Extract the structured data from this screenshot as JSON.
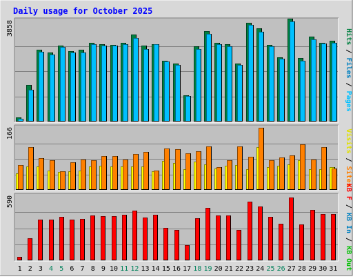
{
  "chart_data": {
    "type": "bar",
    "title": "Daily usage for October 2025",
    "categories": [
      "1",
      "2",
      "3",
      "4",
      "5",
      "6",
      "7",
      "8",
      "9",
      "10",
      "11",
      "12",
      "13",
      "14",
      "15",
      "16",
      "17",
      "18",
      "19",
      "20",
      "21",
      "22",
      "23",
      "24",
      "25",
      "26",
      "27",
      "28",
      "29",
      "30",
      "31"
    ],
    "weekend_categories": [
      "4",
      "5",
      "11",
      "12",
      "18",
      "19",
      "25",
      "26"
    ],
    "panels": [
      {
        "name": "hits",
        "ymax_label": "3858",
        "ymax": 3858,
        "right_label_parts": [
          {
            "text": "Hits",
            "color": "#008040"
          },
          {
            "text": " / ",
            "color": "#000000"
          },
          {
            "text": "Files",
            "color": "#0080c0"
          },
          {
            "text": " / ",
            "color": "#000000"
          },
          {
            "text": "Pages",
            "color": "#00c0ff"
          }
        ],
        "series": [
          {
            "name": "Hits",
            "color": "#008040",
            "values": [
              160,
              1400,
              2750,
              2650,
              2900,
              2700,
              2750,
              3020,
              2950,
              2920,
              3000,
              3330,
              2900,
              2950,
              2330,
              2220,
              1000,
              2880,
              3460,
              3000,
              2950,
              2230,
              3790,
              3560,
              2920,
              2460,
              3940,
              2420,
              3250,
              3000,
              3080
            ]
          },
          {
            "name": "Files",
            "color": "#00c0ff",
            "values": [
              110,
              1220,
              2660,
              2570,
              2860,
              2650,
              2640,
              2960,
              2910,
              2900,
              2960,
              3200,
              2780,
              2960,
              2310,
              2170,
              970,
              2770,
              3360,
              2960,
              2890,
              2160,
              3700,
              3430,
              2890,
              2400,
              3840,
              2330,
              3150,
              2980,
              3020
            ]
          }
        ]
      },
      {
        "name": "visits",
        "ymax_label": "166",
        "ymax": 166,
        "right_label_parts": [
          {
            "text": "Visits",
            "color": "#e0e000"
          },
          {
            "text": " / ",
            "color": "#000000"
          },
          {
            "text": "Sites",
            "color": "#ff8000"
          }
        ],
        "series": [
          {
            "name": "Visits",
            "color": "#ffff00",
            "values": [
              45,
              62,
              62,
              52,
              48,
              50,
              52,
              62,
              64,
              62,
              62,
              62,
              62,
              50,
              78,
              72,
              56,
              76,
              68,
              58,
              64,
              66,
              56,
              114,
              60,
              64,
              68,
              80,
              56,
              56,
              60
            ]
          },
          {
            "name": "Sites",
            "color": "#ff8000",
            "values": [
              66,
              114,
              84,
              80,
              50,
              74,
              82,
              80,
              90,
              90,
              82,
              96,
              102,
              52,
              110,
              108,
              98,
              104,
              116,
              60,
              80,
              116,
              88,
              166,
              80,
              86,
              92,
              122,
              82,
              114,
              58
            ]
          }
        ]
      },
      {
        "name": "volume",
        "ymax_label": "590",
        "ymax": 590,
        "right_label_parts": [
          {
            "text": "KB F",
            "color": "#ff0000"
          },
          {
            "text": " / ",
            "color": "#000000"
          },
          {
            "text": "KB In",
            "color": "#0080c0"
          },
          {
            "text": " / ",
            "color": "#000000"
          },
          {
            "text": "KB Out",
            "color": "#00c000"
          }
        ],
        "series": [
          {
            "name": "KB F",
            "color": "#ff0000",
            "values": [
              30,
              200,
              375,
              375,
              402,
              375,
              380,
              415,
              408,
              408,
              420,
              456,
              395,
              419,
              296,
              282,
              140,
              385,
              482,
              415,
              411,
              278,
              537,
              492,
              402,
              338,
              577,
              330,
              460,
              423,
              426
            ]
          }
        ]
      }
    ],
    "grid": true,
    "ylim_min": 0
  }
}
